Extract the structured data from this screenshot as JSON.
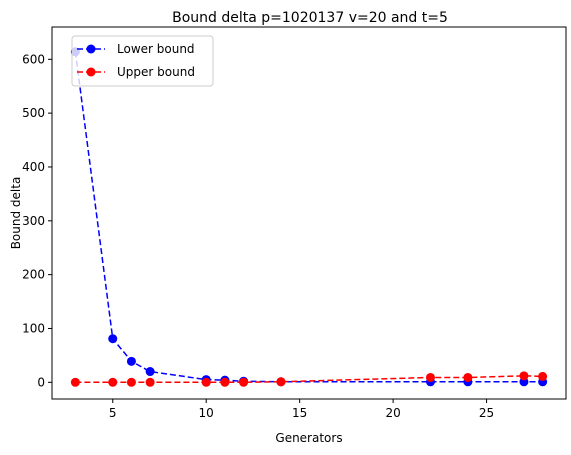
{
  "chart_data": {
    "type": "line",
    "title": "Bound delta p=1020137 v=20 and t=5",
    "xlabel": "Generators",
    "ylabel": "Bound delta",
    "xlim": [
      1.75,
      29.25
    ],
    "ylim": [
      -31,
      660
    ],
    "xticks": [
      5,
      10,
      15,
      20,
      25
    ],
    "yticks": [
      0,
      100,
      200,
      300,
      400,
      500,
      600
    ],
    "grid": false,
    "legend_position": "upper-left",
    "series": [
      {
        "name": "Lower bound",
        "color": "#0000ff",
        "linestyle": "dashed",
        "marker": "circle",
        "x": [
          3,
          5,
          6,
          7,
          10,
          11,
          12,
          14,
          22,
          24,
          27,
          28
        ],
        "y": [
          614,
          81,
          39,
          20,
          5,
          4,
          2,
          1,
          1,
          1,
          1,
          1
        ]
      },
      {
        "name": "Upper bound",
        "color": "#ff0000",
        "linestyle": "dashed",
        "marker": "circle",
        "x": [
          3,
          5,
          6,
          7,
          10,
          11,
          12,
          14,
          22,
          24,
          27,
          28
        ],
        "y": [
          0,
          0,
          0,
          0,
          0,
          0,
          0,
          1,
          9,
          9,
          12,
          11
        ]
      }
    ]
  }
}
